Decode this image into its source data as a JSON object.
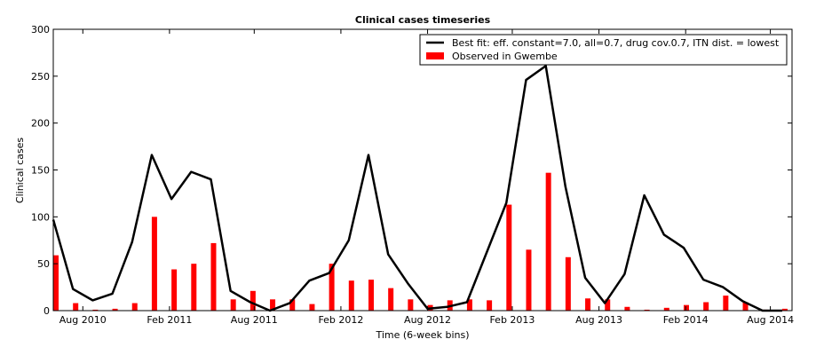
{
  "chart_data": {
    "type": "bar+line",
    "title": "Clinical cases timeseries",
    "xlabel": "Time (6-week bins)",
    "ylabel": "Clinical cases",
    "ylim": [
      0,
      300
    ],
    "yticks": [
      0,
      50,
      100,
      150,
      200,
      250,
      300
    ],
    "xticks": [
      {
        "label": "Aug 2010",
        "bin": 1.5
      },
      {
        "label": "Feb 2011",
        "bin": 5.9
      },
      {
        "label": "Aug 2011",
        "bin": 10.2
      },
      {
        "label": "Feb 2012",
        "bin": 14.6
      },
      {
        "label": "Aug 2012",
        "bin": 19.0
      },
      {
        "label": "Feb 2013",
        "bin": 23.3
      },
      {
        "label": "Aug 2013",
        "bin": 27.7
      },
      {
        "label": "Feb 2014",
        "bin": 32.1
      },
      {
        "label": "Aug 2014",
        "bin": 36.4
      }
    ],
    "xlim": [
      0,
      37.5
    ],
    "grid": false,
    "legend_position": "top-right",
    "colors": {
      "line": "#000000",
      "bars": "#ff0000"
    },
    "series": [
      {
        "name": "Best fit: eff. constant=7.0, all=0.7, drug cov.0.7, ITN dist. = lowest",
        "type": "line",
        "values": [
          97,
          23,
          11,
          18,
          73,
          166,
          119,
          148,
          140,
          21,
          9,
          0,
          8,
          32,
          40,
          75,
          166,
          60,
          29,
          2,
          4,
          9,
          62,
          115,
          246,
          261,
          132,
          35,
          8,
          39,
          123,
          81,
          67,
          33,
          25,
          10,
          0,
          0
        ]
      },
      {
        "name": "Observed in Gwembe",
        "type": "bar",
        "values": [
          59,
          8,
          1,
          2,
          8,
          100,
          44,
          50,
          72,
          12,
          21,
          12,
          12,
          7,
          50,
          32,
          33,
          24,
          12,
          6,
          11,
          12,
          11,
          113,
          65,
          147,
          57,
          13,
          12,
          4,
          1,
          3,
          6,
          9,
          16,
          9,
          1,
          2
        ]
      }
    ]
  }
}
